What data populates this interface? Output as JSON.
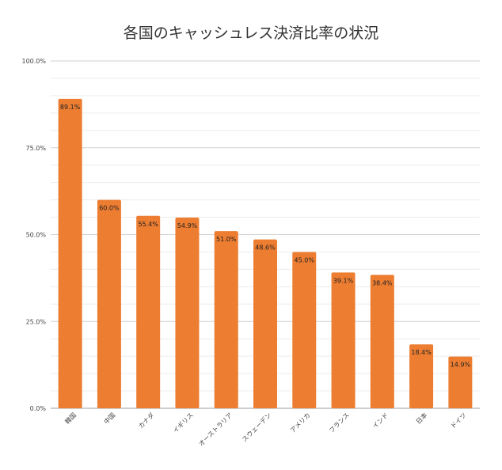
{
  "chart_data": {
    "type": "bar",
    "title": "各国のキャッシュレス決済比率の状況",
    "categories": [
      "韓国",
      "中国",
      "カナダ",
      "イギリス",
      "オーストラリア",
      "スウェーデン",
      "アメリカ",
      "フランス",
      "インド",
      "日本",
      "ドイツ"
    ],
    "values": [
      89.1,
      60.0,
      55.4,
      54.9,
      51.0,
      48.6,
      45.0,
      39.1,
      38.4,
      18.4,
      14.9
    ],
    "value_labels": [
      "89.1%",
      "60.0%",
      "55.4%",
      "54.9%",
      "51.0%",
      "48.6%",
      "45.0%",
      "39.1%",
      "38.4%",
      "18.4%",
      "14.9%"
    ],
    "ylim": [
      0,
      100
    ],
    "yticks": [
      0,
      25,
      50,
      75,
      100
    ],
    "ytick_labels": [
      "0.0%",
      "25.0%",
      "50.0%",
      "75.0%",
      "100.0%"
    ],
    "xlabel": "",
    "ylabel": "",
    "grid": true,
    "bar_color": "#ED7D31",
    "legend": "none"
  }
}
